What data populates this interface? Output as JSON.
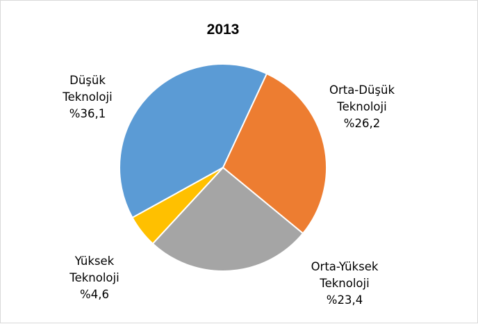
{
  "chart_data": {
    "type": "pie",
    "title": "2013",
    "slices": [
      {
        "label": [
          "Düşük",
          "Teknoloji",
          "%36,1"
        ],
        "value": 36.1,
        "color": "#5b9bd5"
      },
      {
        "label": [
          "Orta-Düşük",
          "Teknoloji",
          "%26,2"
        ],
        "value": 26.2,
        "color": "#ed7d31"
      },
      {
        "label": [
          "Orta-Yüksek",
          "Teknoloji",
          "%23,4"
        ],
        "value": 23.4,
        "color": "#a5a5a5"
      },
      {
        "label": [
          "Yüksek",
          "Teknoloji",
          "%4,6"
        ],
        "value": 4.6,
        "color": "#ffc000"
      }
    ],
    "legend": "none"
  }
}
